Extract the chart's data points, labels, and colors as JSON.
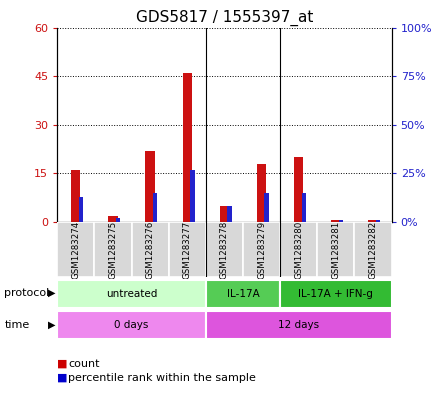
{
  "title": "GDS5817 / 1555397_at",
  "samples": [
    "GSM1283274",
    "GSM1283275",
    "GSM1283276",
    "GSM1283277",
    "GSM1283278",
    "GSM1283279",
    "GSM1283280",
    "GSM1283281",
    "GSM1283282"
  ],
  "counts": [
    16,
    2,
    22,
    46,
    5,
    18,
    20,
    0.5,
    0.5
  ],
  "percentiles": [
    13,
    2,
    15,
    27,
    8,
    15,
    15,
    1,
    1
  ],
  "ylim_left": [
    0,
    60
  ],
  "ylim_right": [
    0,
    100
  ],
  "yticks_left": [
    0,
    15,
    30,
    45,
    60
  ],
  "yticks_right": [
    0,
    25,
    50,
    75,
    100
  ],
  "ytick_labels_left": [
    "0",
    "15",
    "30",
    "45",
    "60"
  ],
  "ytick_labels_right": [
    "0%",
    "25%",
    "50%",
    "75%",
    "100%"
  ],
  "bar_color_count": "#cc1111",
  "bar_color_pct": "#2222cc",
  "red_bar_width": 0.25,
  "blue_bar_width": 0.12,
  "protocol_groups": [
    {
      "label": "untreated",
      "start": 0,
      "end": 3,
      "color": "#ccffcc"
    },
    {
      "label": "IL-17A",
      "start": 4,
      "end": 5,
      "color": "#55cc55"
    },
    {
      "label": "IL-17A + IFN-g",
      "start": 6,
      "end": 8,
      "color": "#33bb33"
    }
  ],
  "time_groups": [
    {
      "label": "0 days",
      "start": 0,
      "end": 3,
      "color": "#ee88ee"
    },
    {
      "label": "12 days",
      "start": 4,
      "end": 8,
      "color": "#dd55dd"
    }
  ],
  "grid_color": "#000000",
  "bar_color_count_legend": "#cc0000",
  "bar_color_pct_legend": "#0000cc",
  "title_fontsize": 11,
  "tick_fontsize": 8,
  "label_fontsize": 8,
  "legend_fontsize": 8
}
